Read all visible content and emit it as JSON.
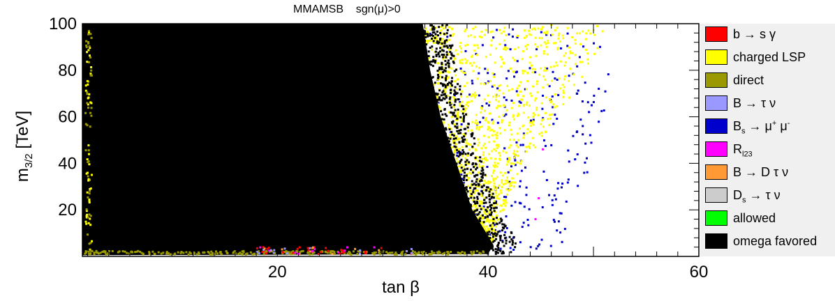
{
  "chart_data": {
    "type": "scatter",
    "title": "MMAMSB    sgn(μ)>0",
    "xlabel": "tan β",
    "ylabel": "m3/2 [TeV]",
    "xlim": [
      1.5,
      60
    ],
    "ylim": [
      0,
      100
    ],
    "x_ticks": [
      20,
      40,
      60
    ],
    "y_ticks": [
      20,
      40,
      60,
      80,
      100
    ],
    "grid": false,
    "legend_position": "right",
    "legend": [
      {
        "label": "b → s γ",
        "color": "#ff0000"
      },
      {
        "label": "charged LSP",
        "color": "#ffff00"
      },
      {
        "label": "direct",
        "color": "#9a9a00"
      },
      {
        "label": "B → τ ν",
        "color": "#9999ff"
      },
      {
        "label": "Bs → μ+ μ-",
        "color": "#0000cc"
      },
      {
        "label": "Rl23",
        "color": "#ff00ff"
      },
      {
        "label": "B → D τ ν",
        "color": "#ff9933"
      },
      {
        "label": "Ds → τ ν",
        "color": "#cccccc"
      },
      {
        "label": "allowed",
        "color": "#00ff00"
      },
      {
        "label": "omega favored",
        "color": "#000000"
      }
    ],
    "regions": [
      {
        "name": "omega favored",
        "color": "#000000",
        "boundary_x_at_y": [
          [
            100,
            33.8
          ],
          [
            80,
            34.5
          ],
          [
            60,
            35.5
          ],
          [
            40,
            37.0
          ],
          [
            20,
            38.5
          ],
          [
            5,
            40.5
          ],
          [
            1,
            40.0
          ]
        ]
      },
      {
        "name": "charged LSP",
        "color": "#ffff00",
        "boundary_x_at_y": [
          [
            100,
            51.5
          ],
          [
            80,
            49.5
          ],
          [
            60,
            46.5
          ],
          [
            40,
            43.5
          ],
          [
            20,
            41.5
          ],
          [
            5,
            40.5
          ]
        ]
      },
      {
        "name": "Bs → μ+ μ-",
        "color": "#0000cc",
        "boundary_x_at_y": [
          [
            100,
            51.0
          ],
          [
            80,
            51.5
          ],
          [
            60,
            51.0
          ],
          [
            40,
            50.0
          ],
          [
            20,
            48.0
          ],
          [
            5,
            47.0
          ]
        ]
      }
    ]
  }
}
